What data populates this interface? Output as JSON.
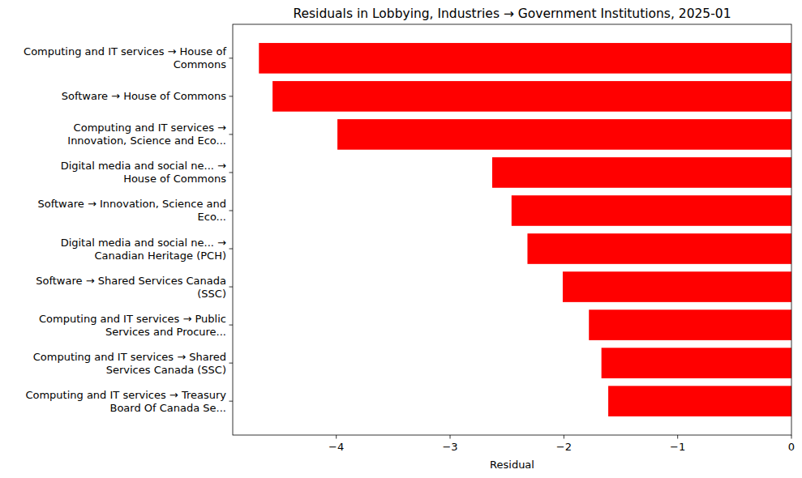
{
  "chart_data": {
    "type": "bar",
    "orientation": "horizontal",
    "title": "Residuals in Lobbying, Industries → Government Institutions, 2025-01",
    "x_label": "Residual",
    "categories": [
      "Computing and IT services → House of\nCommons",
      "Software → House of Commons",
      "Computing and IT services →\nInnovation, Science and Eco...",
      "Digital media and social ne... →\nHouse of Commons",
      "Software → Innovation, Science and\nEco...",
      "Digital media and social ne... →\nCanadian Heritage (PCH)",
      "Software → Shared Services Canada\n(SSC)",
      "Computing and IT services → Public\nServices and Procure...",
      "Computing and IT services → Shared\nServices Canada (SSC)",
      "Computing and IT services → Treasury\nBoard Of Canada Se..."
    ],
    "values": [
      -4.68,
      -4.56,
      -3.99,
      -2.63,
      -2.46,
      -2.32,
      -2.01,
      -1.78,
      -1.67,
      -1.61
    ],
    "color": "#ff0000",
    "xlim": [
      -4.91,
      0
    ],
    "xticks": [
      {
        "value": -4,
        "label": "−4"
      },
      {
        "value": -3,
        "label": "−3"
      },
      {
        "value": -2,
        "label": "−2"
      },
      {
        "value": -1,
        "label": "−1"
      },
      0
    ],
    "grid": false
  }
}
